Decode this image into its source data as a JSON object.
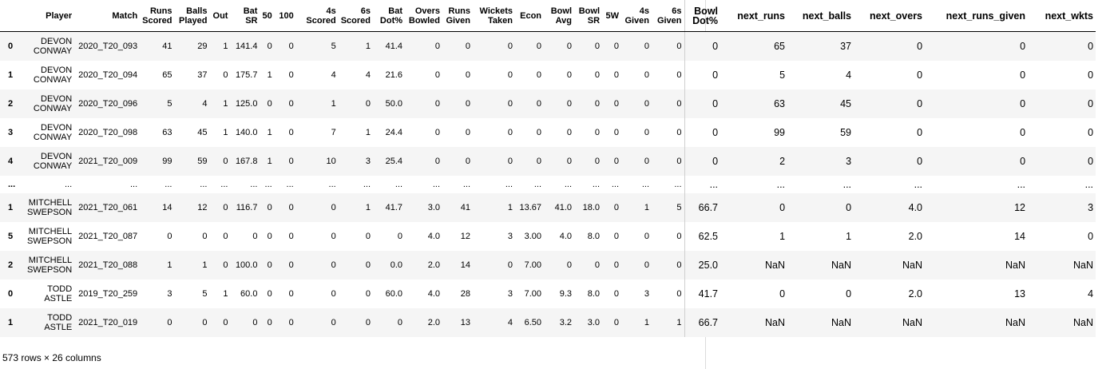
{
  "columns": [
    "",
    "Player",
    "Match",
    "Runs Scored",
    "Balls Played",
    "Out",
    "Bat SR",
    "50",
    "100",
    "4s Scored",
    "6s Scored",
    "Bat Dot%",
    "Overs Bowled",
    "Runs Given",
    "Wickets Taken",
    "Econ",
    "Bowl Avg",
    "Bowl SR",
    "5W",
    "4s Given",
    "6s Given",
    "Bowl Dot%",
    "next_runs",
    "next_balls",
    "next_overs",
    "next_runs_given",
    "next_wkts"
  ],
  "rows": [
    [
      "0",
      "DEVON CONWAY",
      "2020_T20_093",
      "41",
      "29",
      "1",
      "141.4",
      "0",
      "0",
      "5",
      "1",
      "41.4",
      "0",
      "0",
      "0",
      "0",
      "0",
      "0",
      "0",
      "0",
      "0",
      "0",
      "65",
      "37",
      "0",
      "0",
      "0"
    ],
    [
      "1",
      "DEVON CONWAY",
      "2020_T20_094",
      "65",
      "37",
      "0",
      "175.7",
      "1",
      "0",
      "4",
      "4",
      "21.6",
      "0",
      "0",
      "0",
      "0",
      "0",
      "0",
      "0",
      "0",
      "0",
      "0",
      "5",
      "4",
      "0",
      "0",
      "0"
    ],
    [
      "2",
      "DEVON CONWAY",
      "2020_T20_096",
      "5",
      "4",
      "1",
      "125.0",
      "0",
      "0",
      "1",
      "0",
      "50.0",
      "0",
      "0",
      "0",
      "0",
      "0",
      "0",
      "0",
      "0",
      "0",
      "0",
      "63",
      "45",
      "0",
      "0",
      "0"
    ],
    [
      "3",
      "DEVON CONWAY",
      "2020_T20_098",
      "63",
      "45",
      "1",
      "140.0",
      "1",
      "0",
      "7",
      "1",
      "24.4",
      "0",
      "0",
      "0",
      "0",
      "0",
      "0",
      "0",
      "0",
      "0",
      "0",
      "99",
      "59",
      "0",
      "0",
      "0"
    ],
    [
      "4",
      "DEVON CONWAY",
      "2021_T20_009",
      "99",
      "59",
      "0",
      "167.8",
      "1",
      "0",
      "10",
      "3",
      "25.4",
      "0",
      "0",
      "0",
      "0",
      "0",
      "0",
      "0",
      "0",
      "0",
      "0",
      "2",
      "3",
      "0",
      "0",
      "0"
    ],
    [
      "...",
      "...",
      "...",
      "...",
      "...",
      "...",
      "...",
      "...",
      "...",
      "...",
      "...",
      "...",
      "...",
      "...",
      "...",
      "...",
      "...",
      "...",
      "...",
      "...",
      "...",
      "...",
      "...",
      "...",
      "...",
      "...",
      "..."
    ],
    [
      "1",
      "MITCHELL SWEPSON",
      "2021_T20_061",
      "14",
      "12",
      "0",
      "116.7",
      "0",
      "0",
      "0",
      "1",
      "41.7",
      "3.0",
      "41",
      "1",
      "13.67",
      "41.0",
      "18.0",
      "0",
      "1",
      "5",
      "66.7",
      "0",
      "0",
      "4.0",
      "12",
      "3"
    ],
    [
      "5",
      "MITCHELL SWEPSON",
      "2021_T20_087",
      "0",
      "0",
      "0",
      "0",
      "0",
      "0",
      "0",
      "0",
      "0",
      "4.0",
      "12",
      "3",
      "3.00",
      "4.0",
      "8.0",
      "0",
      "0",
      "0",
      "62.5",
      "1",
      "1",
      "2.0",
      "14",
      "0"
    ],
    [
      "2",
      "MITCHELL SWEPSON",
      "2021_T20_088",
      "1",
      "1",
      "0",
      "100.0",
      "0",
      "0",
      "0",
      "0",
      "0.0",
      "2.0",
      "14",
      "0",
      "7.00",
      "0",
      "0",
      "0",
      "0",
      "0",
      "25.0",
      "NaN",
      "NaN",
      "NaN",
      "NaN",
      "NaN"
    ],
    [
      "0",
      "TODD ASTLE",
      "2019_T20_259",
      "3",
      "5",
      "1",
      "60.0",
      "0",
      "0",
      "0",
      "0",
      "60.0",
      "4.0",
      "28",
      "3",
      "7.00",
      "9.3",
      "8.0",
      "0",
      "3",
      "0",
      "41.7",
      "0",
      "0",
      "2.0",
      "13",
      "4"
    ],
    [
      "1",
      "TODD ASTLE",
      "2021_T20_019",
      "0",
      "0",
      "0",
      "0",
      "0",
      "0",
      "0",
      "0",
      "0",
      "2.0",
      "13",
      "4",
      "6.50",
      "3.2",
      "3.0",
      "0",
      "1",
      "1",
      "66.7",
      "NaN",
      "NaN",
      "NaN",
      "NaN",
      "NaN"
    ]
  ],
  "footer": "573 rows × 26 columns"
}
